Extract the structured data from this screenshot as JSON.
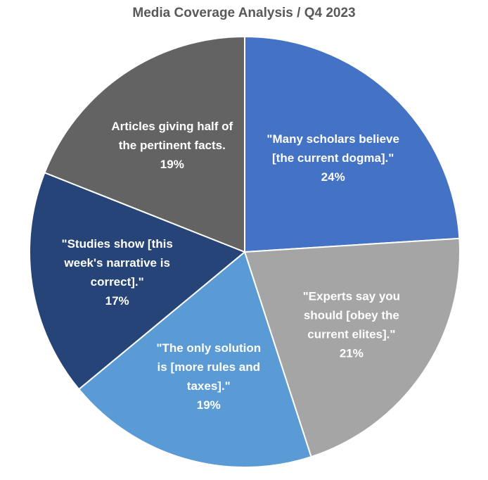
{
  "chart_data": {
    "type": "pie",
    "title": "Media Coverage Analysis / Q4 2023",
    "slices": [
      {
        "label": [
          "\"Many scholars believe",
          "[the current dogma].\""
        ],
        "percent_label": "24%",
        "value": 24,
        "color": "#4472C4"
      },
      {
        "label": [
          "\"Experts say you",
          "should [obey the",
          "current elites].\""
        ],
        "percent_label": "21%",
        "value": 21,
        "color": "#A5A5A5"
      },
      {
        "label": [
          "\"The only solution",
          "is [more rules and",
          "taxes].\""
        ],
        "percent_label": "19%",
        "value": 19,
        "color": "#5B9BD5"
      },
      {
        "label": [
          "\"Studies show [this",
          "week's narrative is",
          "correct].\""
        ],
        "percent_label": "17%",
        "value": 17,
        "color": "#264478"
      },
      {
        "label": [
          "Articles giving half of",
          "the pertinent facts."
        ],
        "percent_label": "19%",
        "value": 19,
        "color": "#636363"
      }
    ]
  }
}
